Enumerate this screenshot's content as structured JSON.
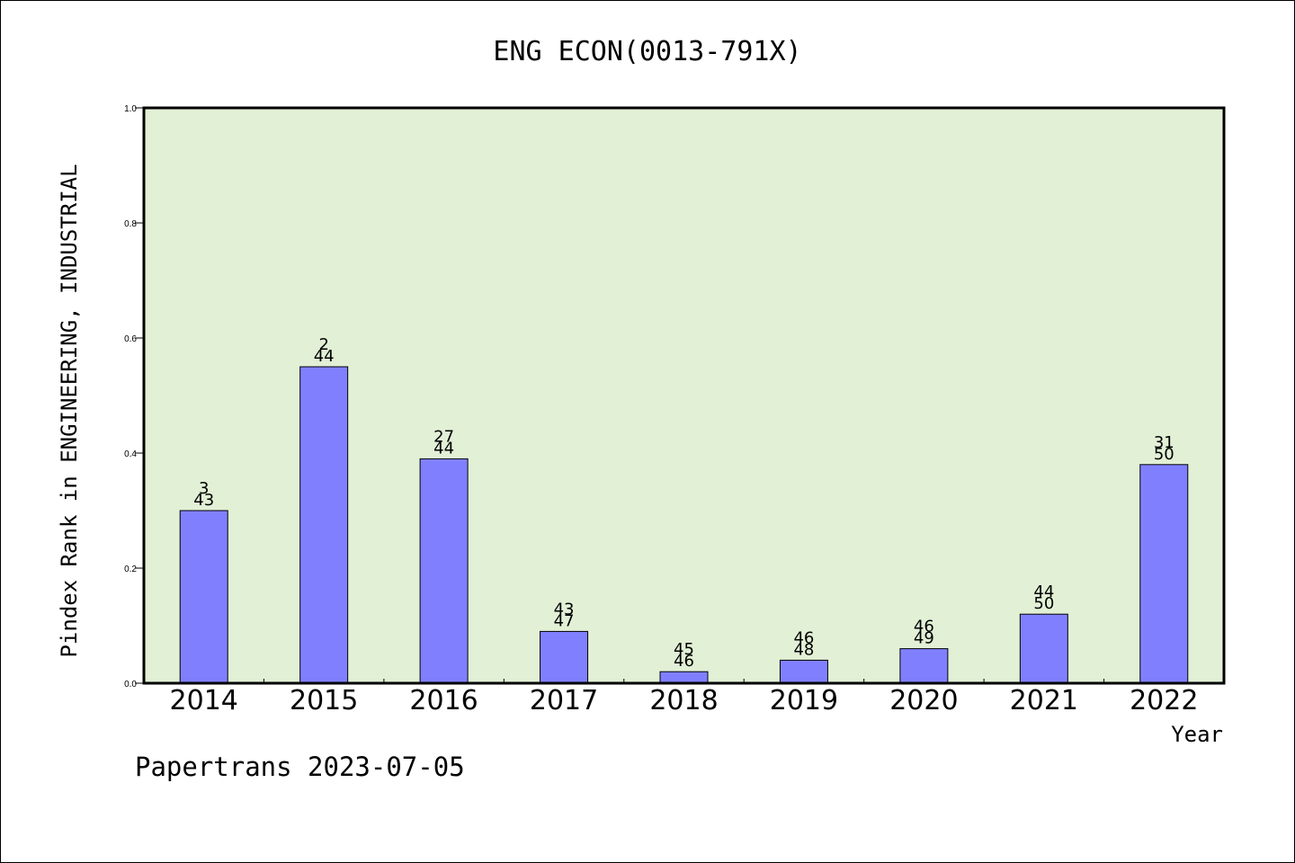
{
  "chart_data": {
    "type": "bar",
    "title": "ENG ECON(0013-791X)",
    "xlabel": "Year",
    "ylabel": "Pindex Rank in ENGINEERING, INDUSTRIAL",
    "ylim": [
      0,
      1.0
    ],
    "yticks": [
      "0.0",
      "0.2",
      "0.4",
      "0.6",
      "0.8",
      "1.0"
    ],
    "categories": [
      "2014",
      "2015",
      "2016",
      "2017",
      "2018",
      "2019",
      "2020",
      "2021",
      "2022"
    ],
    "values": [
      0.3,
      0.55,
      0.39,
      0.09,
      0.02,
      0.04,
      0.06,
      0.12,
      0.38
    ],
    "rank": [
      "3",
      "2",
      "27",
      "43",
      "45",
      "46",
      "46",
      "44",
      "31"
    ],
    "total": [
      "43",
      "44",
      "44",
      "47",
      "46",
      "48",
      "49",
      "50",
      "50"
    ],
    "grid": false,
    "legend": "none",
    "colors": {
      "plot_bg": "#e2f0d6",
      "bar_fill": "#8080ff",
      "bar_stroke": "#000000"
    }
  },
  "footer": "Papertrans 2023-07-05"
}
